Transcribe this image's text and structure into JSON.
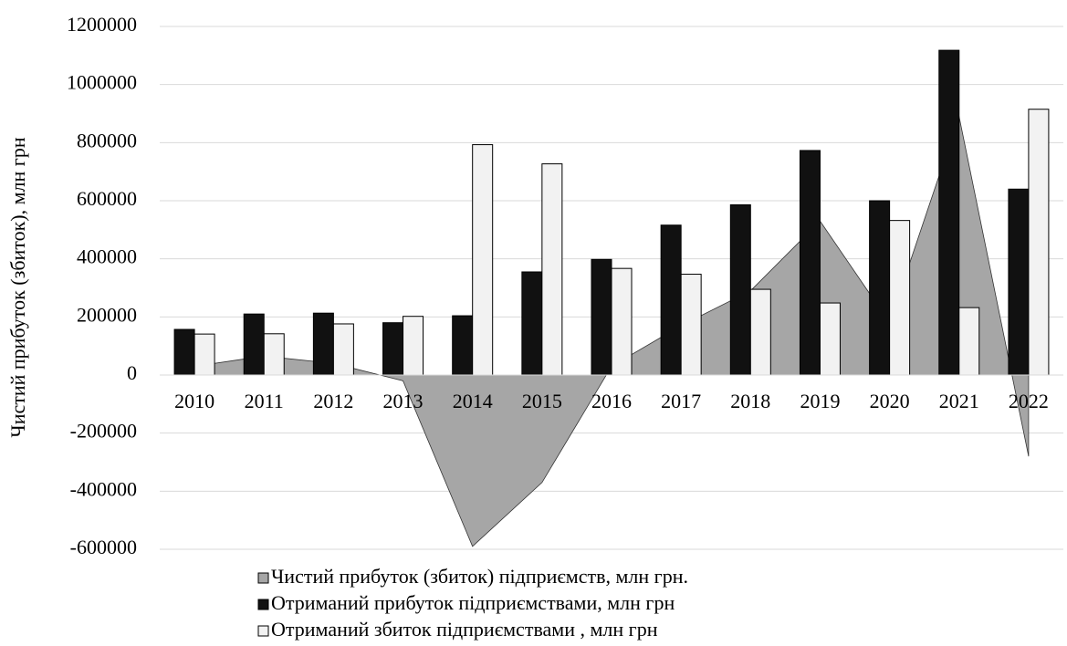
{
  "chart_data": {
    "type": "bar+area",
    "y_label": "Чистий прибуток (збиток), млн грн",
    "categories": [
      "2010",
      "2011",
      "2012",
      "2013",
      "2014",
      "2015",
      "2016",
      "2017",
      "2018",
      "2019",
      "2020",
      "2021",
      "2022"
    ],
    "series": [
      {
        "name": "Чистий прибуток (збиток) підприємств, млн грн.",
        "type": "area",
        "color": "#a6a6a6",
        "values": [
          30000,
          65000,
          40000,
          -20000,
          -590000,
          -370000,
          30000,
          170000,
          290000,
          530000,
          180000,
          890000,
          -280000
        ]
      },
      {
        "name": "Отриманий прибуток підприємствами, млн грн",
        "type": "bar",
        "color": "#111111",
        "values": [
          157000,
          210000,
          213000,
          180000,
          204000,
          355000,
          398000,
          516000,
          586000,
          773000,
          600000,
          1118000,
          640000
        ]
      },
      {
        "name": "Отриманий збиток підприємствами , млн грн",
        "type": "bar",
        "color": "#f2f2f2",
        "values": [
          141000,
          142000,
          176000,
          202000,
          793000,
          727000,
          367000,
          347000,
          295000,
          248000,
          532000,
          232000,
          915000
        ]
      }
    ],
    "ylim": [
      -600000,
      1200000
    ],
    "yticks": [
      -600000,
      -400000,
      -200000,
      0,
      200000,
      400000,
      600000,
      800000,
      1000000,
      1200000
    ],
    "grid": true
  }
}
